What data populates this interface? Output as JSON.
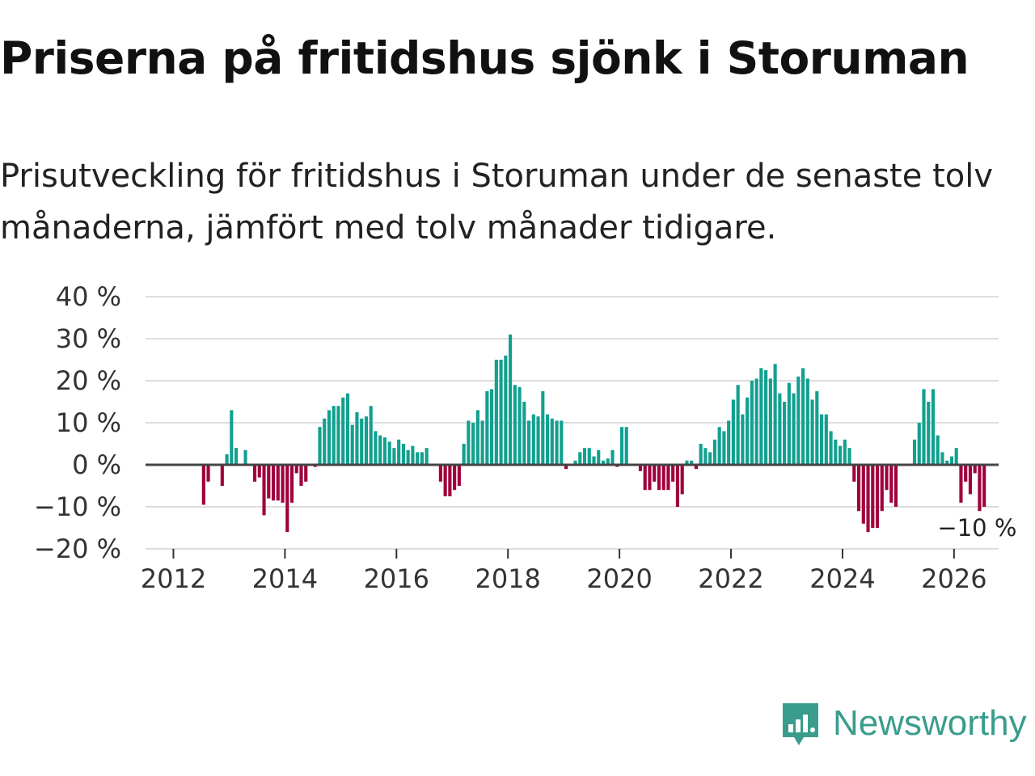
{
  "title": "Priserna på fritidshus sjönk i Storuman",
  "subtitle": "Prisutveckling för fritidshus i Storuman under de senaste tolv månaderna, jämfört med tolv månader tidigare.",
  "logo": {
    "text": "Newsworthy",
    "icon": "newsworthy-bar-chart-icon"
  },
  "colors": {
    "positive": "#12a090",
    "negative": "#a0003c",
    "zero_line": "#444444",
    "grid": "#dddddd"
  },
  "chart_data": {
    "type": "bar",
    "title": "Priserna på fritidshus sjönk i Storuman",
    "xlabel": "",
    "ylabel": "",
    "ylim": [
      -20,
      40
    ],
    "yticks": [
      40,
      30,
      20,
      10,
      0,
      -10,
      -20
    ],
    "ytick_labels": [
      "40 %",
      "30 %",
      "20 %",
      "10 %",
      "0 %",
      "−10 %",
      "−20 %"
    ],
    "xlim": [
      2011.5,
      2026.8
    ],
    "xticks": [
      2012,
      2014,
      2016,
      2018,
      2020,
      2022,
      2024,
      2026
    ],
    "xtick_labels": [
      "2012",
      "2014",
      "2016",
      "2018",
      "2020",
      "2022",
      "2024",
      "2026"
    ],
    "start": {
      "year": 2012,
      "month": 1
    },
    "series": [
      {
        "name": "Prisutveckling",
        "unit": "%",
        "values": [
          0,
          0,
          0,
          0,
          0,
          0,
          -9.5,
          -4,
          0,
          0,
          -5,
          2.5,
          13,
          4,
          0,
          3.5,
          0,
          -4,
          -3,
          -12,
          -8,
          -8.5,
          -8.5,
          -9,
          -16,
          -9,
          -2,
          -5,
          -4,
          0,
          -0.5,
          9,
          11,
          13,
          14,
          14,
          16,
          17,
          9.5,
          12.5,
          11,
          11.5,
          14,
          8,
          7,
          6.5,
          5.5,
          4,
          6,
          5,
          3.5,
          4.5,
          3,
          3,
          4,
          0,
          0,
          -4,
          -7.5,
          -7.5,
          -6,
          -5,
          5,
          10.5,
          10,
          13,
          10.5,
          17.5,
          18,
          25,
          25,
          26,
          31,
          19,
          18.5,
          15,
          10.5,
          12,
          11.5,
          17.5,
          12,
          11,
          10.5,
          10.5,
          -1,
          0,
          1,
          3,
          4,
          4,
          2,
          3.5,
          1,
          1.5,
          3.5,
          -0.5,
          9,
          9,
          0,
          0,
          -1.5,
          -6,
          -6,
          -4,
          -6,
          -6,
          -6,
          -4,
          -10,
          -7,
          1,
          1,
          -1,
          5,
          4,
          3,
          6,
          9,
          8,
          10.5,
          15.5,
          19,
          12,
          16,
          20,
          20.5,
          23,
          22.5,
          20.5,
          24,
          17,
          15,
          19.5,
          17,
          21,
          23,
          20.5,
          15.5,
          17.5,
          12,
          12,
          8,
          6,
          4.5,
          6,
          4,
          -4,
          -11,
          -14,
          -16,
          -15,
          -15,
          -11,
          -6,
          -9,
          -10,
          0,
          0,
          0,
          6,
          10,
          18,
          15,
          18,
          7,
          3,
          1,
          2,
          4,
          -9,
          -4,
          -7,
          -2,
          -11,
          -10
        ]
      }
    ],
    "annotations": [
      {
        "text": "−10 %",
        "x": 2026.4,
        "y": -10
      }
    ]
  }
}
